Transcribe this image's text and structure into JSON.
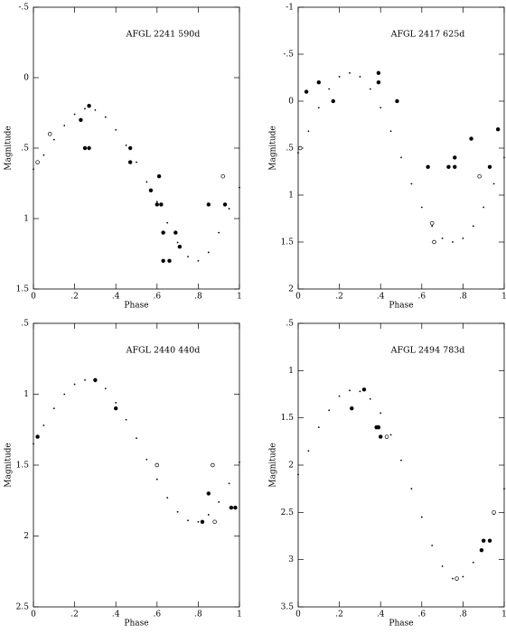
{
  "chart_data": [
    {
      "type": "scatter",
      "title": "AFGL 2241   590d",
      "xlabel": "Phase",
      "ylabel": "Magnitude",
      "xlim": [
        0,
        1
      ],
      "ylim": [
        -0.5,
        1.5
      ],
      "y_inverted": true,
      "xticks": [
        0,
        {
          "value": 0.2,
          "label": ".2"
        },
        {
          "value": 0.4,
          "label": ".4"
        },
        {
          "value": 0.6,
          "label": ".6"
        },
        {
          "value": 0.8,
          "label": ".8"
        },
        1
      ],
      "yticks": [
        {
          "value": -0.5,
          "label": "-.5"
        },
        0,
        {
          "value": 0.5,
          "label": ".5"
        },
        1,
        1.5
      ],
      "series": [
        {
          "marker": "dot",
          "color": "#000000",
          "x": [
            0,
            0.05,
            0.1,
            0.15,
            0.2,
            0.25,
            0.3,
            0.35,
            0.4,
            0.45,
            0.5,
            0.55,
            0.6,
            0.65,
            0.7,
            0.75,
            0.8,
            0.85,
            0.9,
            0.95,
            1
          ],
          "values": [
            0.65,
            0.55,
            0.44,
            0.34,
            0.26,
            0.22,
            0.23,
            0.28,
            0.37,
            0.48,
            0.6,
            0.74,
            0.88,
            1.03,
            1.17,
            1.27,
            1.3,
            1.24,
            1.1,
            0.93,
            0.78
          ]
        },
        {
          "marker": "filled",
          "color": "#000000",
          "x": [
            0.23,
            0.25,
            0.27,
            0.27,
            0.47,
            0.47,
            0.57,
            0.6,
            0.61,
            0.62,
            0.63,
            0.63,
            0.66,
            0.69,
            0.71,
            0.85,
            0.93
          ],
          "values": [
            0.3,
            0.5,
            0.5,
            0.2,
            0.5,
            0.6,
            0.8,
            0.9,
            0.7,
            0.9,
            1.1,
            1.3,
            1.3,
            1.1,
            1.2,
            0.9,
            0.9
          ]
        },
        {
          "marker": "open",
          "color": "#000000",
          "x": [
            0.02,
            0.08,
            0.92
          ],
          "values": [
            0.6,
            0.4,
            0.7
          ]
        }
      ]
    },
    {
      "type": "scatter",
      "title": "AFGL 2417   625d",
      "xlabel": "Phase",
      "ylabel": "Magnitude",
      "xlim": [
        0,
        1
      ],
      "ylim": [
        -1,
        2
      ],
      "y_inverted": true,
      "xticks": [
        0,
        {
          "value": 0.2,
          "label": ".2"
        },
        {
          "value": 0.4,
          "label": ".4"
        },
        {
          "value": 0.6,
          "label": ".6"
        },
        {
          "value": 0.8,
          "label": ".8"
        },
        1
      ],
      "yticks": [
        -1,
        {
          "value": -0.5,
          "label": "-.5"
        },
        0,
        {
          "value": 0.5,
          "label": ".5"
        },
        1,
        1.5,
        2
      ],
      "series": [
        {
          "marker": "dot",
          "color": "#000000",
          "x": [
            0,
            0.05,
            0.1,
            0.15,
            0.2,
            0.25,
            0.3,
            0.35,
            0.4,
            0.45,
            0.5,
            0.55,
            0.6,
            0.65,
            0.7,
            0.75,
            0.8,
            0.85,
            0.9,
            0.95,
            1
          ],
          "values": [
            0.55,
            0.32,
            0.07,
            -0.13,
            -0.26,
            -0.3,
            -0.26,
            -0.13,
            0.07,
            0.32,
            0.6,
            0.88,
            1.13,
            1.33,
            1.46,
            1.5,
            1.46,
            1.33,
            1.13,
            0.88,
            0.6
          ]
        },
        {
          "marker": "filled",
          "color": "#000000",
          "x": [
            0.04,
            0.1,
            0.17,
            0.39,
            0.39,
            0.48,
            0.63,
            0.73,
            0.76,
            0.76,
            0.84,
            0.93,
            0.97
          ],
          "values": [
            -0.1,
            -0.2,
            0,
            -0.3,
            -0.2,
            0,
            0.7,
            0.7,
            0.7,
            0.6,
            0.4,
            0.7,
            0.3
          ]
        },
        {
          "marker": "open",
          "color": "#000000",
          "x": [
            0.01,
            0.65,
            0.66,
            0.88
          ],
          "values": [
            0.5,
            1.3,
            1.5,
            0.8
          ]
        }
      ]
    },
    {
      "type": "scatter",
      "title": "AFGL 2440   440d",
      "xlabel": "Phase",
      "ylabel": "Magnitude",
      "xlim": [
        0,
        1
      ],
      "ylim": [
        0.5,
        2.5
      ],
      "y_inverted": true,
      "xticks": [
        0,
        {
          "value": 0.2,
          "label": ".2"
        },
        {
          "value": 0.4,
          "label": ".4"
        },
        {
          "value": 0.6,
          "label": ".6"
        },
        {
          "value": 0.8,
          "label": ".8"
        },
        1
      ],
      "yticks": [
        {
          "value": 0.5,
          "label": ".5"
        },
        1,
        1.5,
        2,
        2.5
      ],
      "series": [
        {
          "marker": "dot",
          "color": "#000000",
          "x": [
            0,
            0.05,
            0.1,
            0.15,
            0.2,
            0.25,
            0.3,
            0.35,
            0.4,
            0.45,
            0.5,
            0.55,
            0.6,
            0.65,
            0.7,
            0.75,
            0.8,
            0.85,
            0.9,
            0.95,
            1
          ],
          "values": [
            1.35,
            1.22,
            1.1,
            1.0,
            0.93,
            0.9,
            0.91,
            0.96,
            1.06,
            1.18,
            1.31,
            1.46,
            1.6,
            1.73,
            1.83,
            1.89,
            1.9,
            1.85,
            1.76,
            1.63,
            1.48
          ]
        },
        {
          "marker": "filled",
          "color": "#000000",
          "x": [
            0.02,
            0.3,
            0.4,
            0.82,
            0.85,
            0.96,
            0.98
          ],
          "values": [
            1.3,
            0.9,
            1.1,
            1.9,
            1.7,
            1.8,
            1.8
          ]
        },
        {
          "marker": "open",
          "color": "#000000",
          "x": [
            0.6,
            0.87,
            0.88
          ],
          "values": [
            1.5,
            1.5,
            1.9
          ]
        }
      ]
    },
    {
      "type": "scatter",
      "title": "AFGL 2494   783d",
      "xlabel": "Phase",
      "ylabel": "Magnitude",
      "xlim": [
        0,
        1
      ],
      "ylim": [
        0.5,
        3.5
      ],
      "y_inverted": true,
      "xticks": [
        0,
        {
          "value": 0.2,
          "label": ".2"
        },
        {
          "value": 0.4,
          "label": ".4"
        },
        {
          "value": 0.6,
          "label": ".6"
        },
        {
          "value": 0.8,
          "label": ".8"
        },
        1
      ],
      "yticks": [
        {
          "value": 0.5,
          "label": ".5"
        },
        1,
        1.5,
        2,
        2.5,
        3,
        3.5
      ],
      "series": [
        {
          "marker": "dot",
          "color": "#000000",
          "x": [
            0,
            0.05,
            0.1,
            0.15,
            0.2,
            0.25,
            0.3,
            0.35,
            0.4,
            0.45,
            0.5,
            0.55,
            0.6,
            0.65,
            0.7,
            0.75,
            0.8,
            0.85,
            0.9,
            0.95,
            1
          ],
          "values": [
            2.1,
            1.85,
            1.6,
            1.42,
            1.27,
            1.21,
            1.22,
            1.3,
            1.45,
            1.68,
            1.95,
            2.25,
            2.55,
            2.85,
            3.07,
            3.2,
            3.18,
            3.03,
            2.8,
            2.52,
            2.25
          ]
        },
        {
          "marker": "filled",
          "color": "#000000",
          "x": [
            0.26,
            0.32,
            0.38,
            0.39,
            0.4,
            0.89,
            0.9,
            0.93
          ],
          "values": [
            1.4,
            1.2,
            1.6,
            1.6,
            1.7,
            2.9,
            2.8,
            2.8
          ]
        },
        {
          "marker": "open",
          "color": "#000000",
          "x": [
            0.43,
            0.77,
            0.95
          ],
          "values": [
            1.7,
            3.2,
            2.5
          ]
        }
      ]
    }
  ]
}
